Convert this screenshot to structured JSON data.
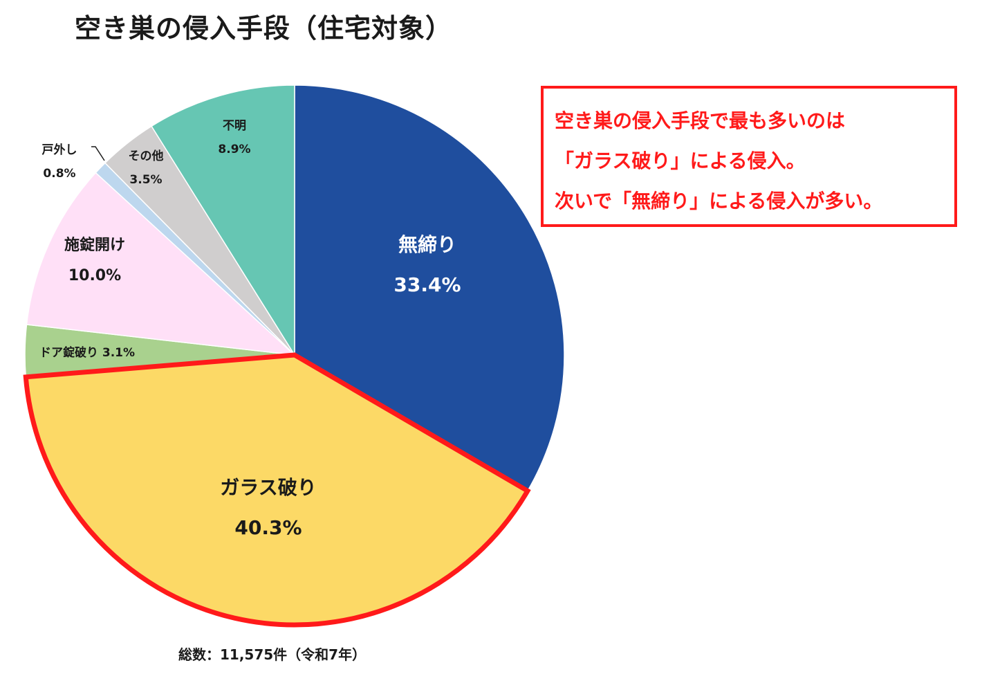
{
  "title": "空き巣の侵入手段（住宅対象）",
  "callout": {
    "lines": [
      "空き巣の侵入手段で最も多いのは",
      "「ガラス破り」による侵入。",
      "次いで「無締り」による侵入が多い。"
    ],
    "color": "#ff1a1a"
  },
  "footer": "総数：11,575件（令和7年）",
  "chart_data": {
    "type": "pie",
    "title": "空き巣の侵入手段（住宅対象）",
    "start": "12 o'clock, clockwise",
    "slices": [
      {
        "label": "無締り",
        "value": 33.4,
        "value_label": "33.4%",
        "color": "#1f4e9e"
      },
      {
        "label": "ガラス破り",
        "value": 40.3,
        "value_label": "40.3%",
        "color": "#fcd966",
        "highlight": true,
        "outline": "#ff1a1a"
      },
      {
        "label": "ドア錠破り",
        "value": 3.1,
        "value_label": "3.1%",
        "color": "#a9d18e"
      },
      {
        "label": "施錠開け",
        "value": 10.0,
        "value_label": "10.0%",
        "color": "#ffe0f7"
      },
      {
        "label": "戸外し",
        "value": 0.8,
        "value_label": "0.8%",
        "color": "#bdd7ee"
      },
      {
        "label": "その他",
        "value": 3.5,
        "value_label": "3.5%",
        "color": "#d0cece"
      },
      {
        "label": "不明",
        "value": 8.9,
        "value_label": "8.9%",
        "color": "#66c6b3"
      }
    ]
  }
}
